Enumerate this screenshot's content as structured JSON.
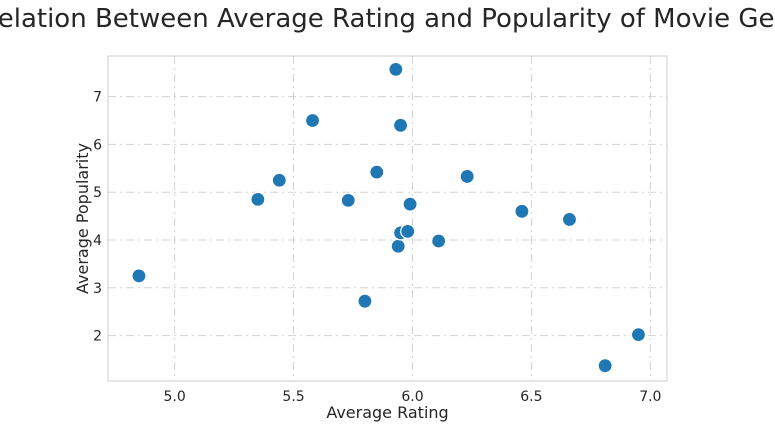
{
  "chart_data": {
    "type": "scatter",
    "title": "Correlation Between Average Rating and Popularity of Movie Genres",
    "xlabel": "Average Rating",
    "ylabel": "Average Popularity",
    "xlim": [
      4.72,
      7.07
    ],
    "ylim": [
      1.05,
      7.85
    ],
    "xticks": [
      "5.0",
      "5.5",
      "6.0",
      "6.5",
      "7.0"
    ],
    "yticks": [
      "2",
      "3",
      "4",
      "5",
      "6",
      "7"
    ],
    "grid": true,
    "point_color": "#1f77b4",
    "points": [
      {
        "x": 4.85,
        "y": 3.25
      },
      {
        "x": 5.35,
        "y": 4.85
      },
      {
        "x": 5.44,
        "y": 5.25
      },
      {
        "x": 5.58,
        "y": 6.5
      },
      {
        "x": 5.73,
        "y": 4.83
      },
      {
        "x": 5.8,
        "y": 2.72
      },
      {
        "x": 5.85,
        "y": 5.42
      },
      {
        "x": 5.93,
        "y": 7.57
      },
      {
        "x": 5.94,
        "y": 3.87
      },
      {
        "x": 5.95,
        "y": 6.4
      },
      {
        "x": 5.95,
        "y": 4.15
      },
      {
        "x": 5.98,
        "y": 4.18
      },
      {
        "x": 5.99,
        "y": 4.75
      },
      {
        "x": 6.11,
        "y": 3.98
      },
      {
        "x": 6.23,
        "y": 5.33
      },
      {
        "x": 6.46,
        "y": 4.6
      },
      {
        "x": 6.66,
        "y": 4.43
      },
      {
        "x": 6.81,
        "y": 1.37
      },
      {
        "x": 6.95,
        "y": 2.02
      }
    ]
  }
}
